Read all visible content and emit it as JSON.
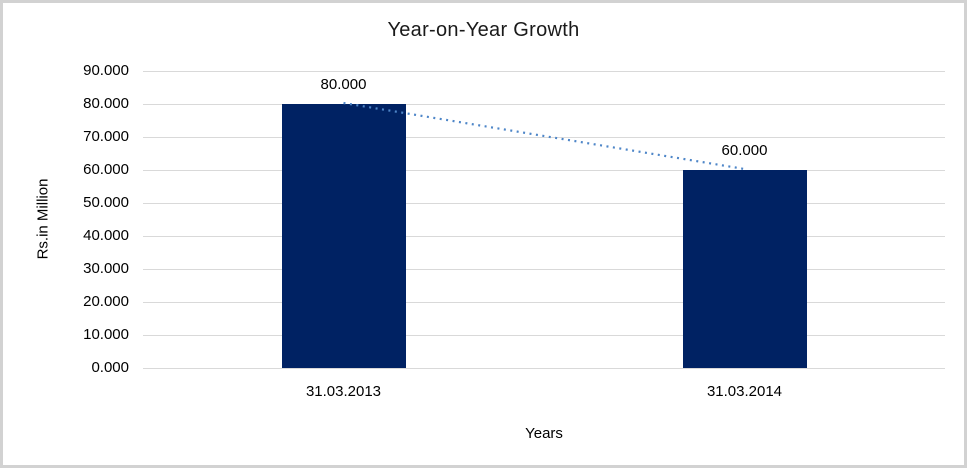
{
  "chart_data": {
    "type": "bar",
    "title": "Year-on-Year Growth",
    "categories": [
      "31.03.2013",
      "31.03.2014"
    ],
    "values": [
      80,
      60
    ],
    "data_labels": [
      "80.000",
      "60.000"
    ],
    "xlabel": "Years",
    "ylabel": "Rs.in Million",
    "ylim": [
      0,
      90
    ],
    "yticks": [
      "0.000",
      "10.000",
      "20.000",
      "30.000",
      "40.000",
      "50.000",
      "60.000",
      "70.000",
      "80.000",
      "90.000"
    ],
    "grid": true,
    "legend": false,
    "trendline": {
      "style": "dotted",
      "connects_values": [
        80,
        60
      ]
    }
  },
  "colors": {
    "bar": "#002263",
    "trendline": "#4e86c8",
    "gridline": "#d9d9d9",
    "frame_border": "#d2d2d2",
    "title_text": "#1a1a1a",
    "axis_text": "#000000"
  }
}
